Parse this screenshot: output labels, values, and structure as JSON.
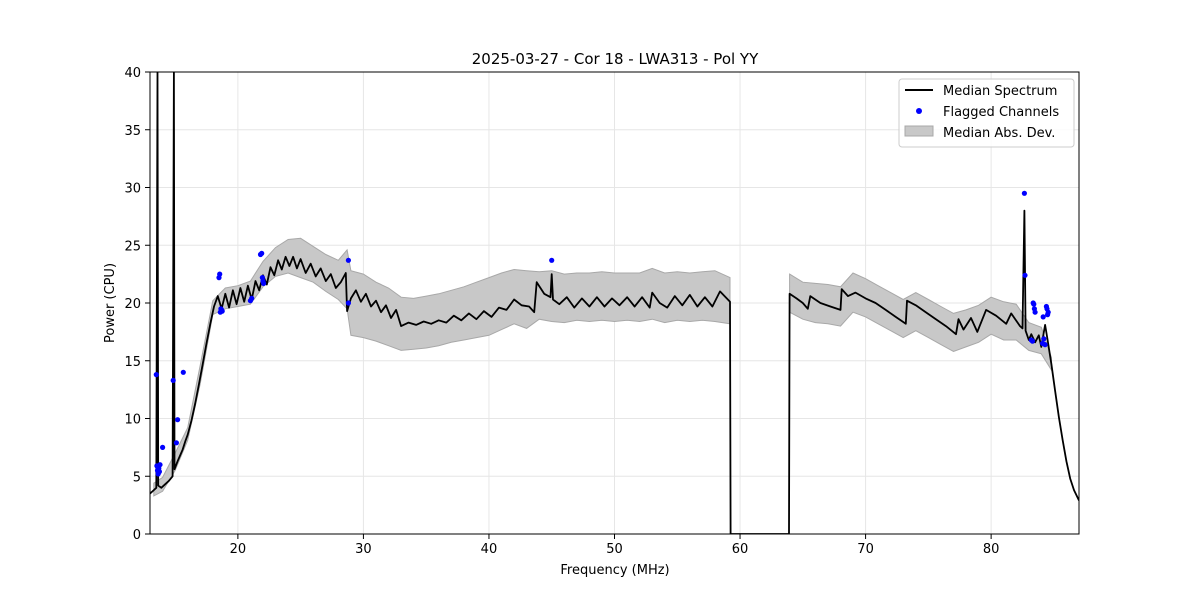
{
  "chart_data": {
    "type": "line",
    "title": "2025-03-27 - Cor 18 - LWA313 - Pol YY",
    "xlabel": "Frequency (MHz)",
    "ylabel": "Power (CPU)",
    "xlim": [
      13.0,
      87.0
    ],
    "ylim": [
      0,
      40
    ],
    "xticks": [
      20,
      30,
      40,
      50,
      60,
      70,
      80
    ],
    "yticks": [
      0,
      5,
      10,
      15,
      20,
      25,
      30,
      35,
      40
    ],
    "grid": true,
    "legend_position": "top-right",
    "legend": [
      "Median Spectrum",
      "Flagged Channels",
      "Median Abs. Dev."
    ],
    "colors": {
      "median": "#000000",
      "flagged": "#0000ff",
      "mad_fill": "#c8c8c8",
      "mad_edge": "#a8a8a8",
      "grid": "#e6e6e6"
    },
    "series": [
      {
        "name": "Median Spectrum",
        "points": [
          [
            13.0,
            3.5
          ],
          [
            13.3,
            3.8
          ],
          [
            13.5,
            4.0
          ],
          [
            13.6,
            40
          ],
          [
            13.65,
            4.2
          ],
          [
            13.9,
            4.0
          ],
          [
            14.2,
            4.3
          ],
          [
            14.5,
            4.6
          ],
          [
            14.8,
            5.0
          ],
          [
            14.9,
            40
          ],
          [
            14.95,
            5.6
          ],
          [
            15.2,
            6.3
          ],
          [
            15.4,
            6.8
          ],
          [
            15.6,
            7.3
          ],
          [
            15.8,
            8.0
          ],
          [
            16.0,
            8.6
          ],
          [
            16.3,
            9.8
          ],
          [
            16.6,
            11.3
          ],
          [
            16.9,
            13.0
          ],
          [
            17.2,
            14.7
          ],
          [
            17.5,
            16.5
          ],
          [
            17.8,
            18.2
          ],
          [
            18.1,
            19.7
          ],
          [
            18.4,
            20.6
          ],
          [
            18.7,
            19.5
          ],
          [
            19.0,
            20.8
          ],
          [
            19.3,
            19.6
          ],
          [
            19.6,
            21.1
          ],
          [
            19.9,
            19.9
          ],
          [
            20.2,
            21.3
          ],
          [
            20.5,
            20.1
          ],
          [
            20.8,
            21.5
          ],
          [
            21.1,
            20.3
          ],
          [
            21.4,
            21.9
          ],
          [
            21.7,
            21.1
          ],
          [
            22.0,
            22.4
          ],
          [
            22.3,
            21.6
          ],
          [
            22.6,
            23.1
          ],
          [
            22.9,
            22.4
          ],
          [
            23.2,
            23.7
          ],
          [
            23.5,
            22.9
          ],
          [
            23.8,
            24.0
          ],
          [
            24.1,
            23.2
          ],
          [
            24.4,
            24.0
          ],
          [
            24.7,
            23.0
          ],
          [
            25.0,
            23.8
          ],
          [
            25.4,
            22.6
          ],
          [
            25.8,
            23.4
          ],
          [
            26.2,
            22.3
          ],
          [
            26.6,
            23.0
          ],
          [
            27.0,
            21.9
          ],
          [
            27.4,
            22.5
          ],
          [
            27.8,
            21.3
          ],
          [
            28.2,
            21.8
          ],
          [
            28.6,
            22.6
          ],
          [
            28.7,
            19.3
          ],
          [
            29.0,
            20.4
          ],
          [
            29.4,
            21.1
          ],
          [
            29.8,
            20.1
          ],
          [
            30.2,
            20.8
          ],
          [
            30.6,
            19.7
          ],
          [
            31.0,
            20.2
          ],
          [
            31.4,
            19.2
          ],
          [
            31.8,
            19.8
          ],
          [
            32.2,
            18.7
          ],
          [
            32.6,
            19.4
          ],
          [
            33.0,
            18.0
          ],
          [
            33.6,
            18.3
          ],
          [
            34.2,
            18.1
          ],
          [
            34.8,
            18.4
          ],
          [
            35.4,
            18.2
          ],
          [
            36.0,
            18.5
          ],
          [
            36.6,
            18.3
          ],
          [
            37.2,
            18.9
          ],
          [
            37.8,
            18.5
          ],
          [
            38.4,
            19.1
          ],
          [
            39.0,
            18.6
          ],
          [
            39.6,
            19.3
          ],
          [
            40.2,
            18.8
          ],
          [
            40.8,
            19.6
          ],
          [
            41.4,
            19.4
          ],
          [
            42.0,
            20.3
          ],
          [
            42.6,
            19.8
          ],
          [
            43.2,
            19.7
          ],
          [
            43.6,
            19.2
          ],
          [
            43.8,
            21.8
          ],
          [
            44.4,
            20.8
          ],
          [
            44.9,
            20.5
          ],
          [
            45.0,
            22.5
          ],
          [
            45.1,
            20.3
          ],
          [
            45.6,
            19.9
          ],
          [
            46.2,
            20.5
          ],
          [
            46.8,
            19.6
          ],
          [
            47.4,
            20.4
          ],
          [
            48.0,
            19.7
          ],
          [
            48.6,
            20.5
          ],
          [
            49.2,
            19.7
          ],
          [
            49.8,
            20.4
          ],
          [
            50.4,
            19.8
          ],
          [
            51.0,
            20.5
          ],
          [
            51.6,
            19.7
          ],
          [
            52.2,
            20.5
          ],
          [
            52.8,
            19.6
          ],
          [
            53.0,
            20.9
          ],
          [
            53.6,
            20.0
          ],
          [
            54.2,
            19.6
          ],
          [
            54.8,
            20.6
          ],
          [
            55.4,
            19.8
          ],
          [
            56.0,
            20.7
          ],
          [
            56.6,
            19.7
          ],
          [
            57.2,
            20.5
          ],
          [
            57.8,
            19.7
          ],
          [
            58.4,
            21.0
          ],
          [
            59.2,
            20.1
          ],
          [
            59.25,
            0
          ],
          [
            63.9,
            0
          ],
          [
            63.95,
            20.8
          ],
          [
            64.5,
            20.4
          ],
          [
            65.0,
            20.0
          ],
          [
            65.4,
            19.5
          ],
          [
            65.6,
            20.6
          ],
          [
            66.4,
            20.0
          ],
          [
            67.2,
            19.7
          ],
          [
            68.0,
            19.4
          ],
          [
            68.1,
            21.2
          ],
          [
            68.6,
            20.6
          ],
          [
            69.2,
            20.9
          ],
          [
            70.0,
            20.4
          ],
          [
            70.8,
            20.0
          ],
          [
            71.6,
            19.4
          ],
          [
            72.4,
            18.8
          ],
          [
            73.2,
            18.2
          ],
          [
            73.3,
            20.2
          ],
          [
            74.0,
            19.8
          ],
          [
            74.8,
            19.2
          ],
          [
            75.6,
            18.6
          ],
          [
            76.4,
            18.0
          ],
          [
            77.2,
            17.3
          ],
          [
            77.4,
            18.6
          ],
          [
            77.8,
            17.7
          ],
          [
            78.4,
            18.7
          ],
          [
            78.9,
            17.5
          ],
          [
            79.6,
            19.4
          ],
          [
            80.4,
            18.9
          ],
          [
            81.2,
            18.2
          ],
          [
            81.6,
            19.1
          ],
          [
            82.3,
            18.0
          ],
          [
            82.5,
            17.8
          ],
          [
            82.65,
            28.0
          ],
          [
            82.75,
            17.6
          ],
          [
            83.0,
            16.8
          ],
          [
            83.2,
            17.3
          ],
          [
            83.5,
            16.6
          ],
          [
            83.8,
            17.2
          ],
          [
            84.0,
            16.2
          ],
          [
            84.3,
            18.1
          ],
          [
            84.5,
            16.8
          ],
          [
            84.8,
            14.7
          ],
          [
            85.1,
            12.4
          ],
          [
            85.4,
            10.1
          ],
          [
            85.7,
            8.1
          ],
          [
            86.0,
            6.3
          ],
          [
            86.3,
            4.8
          ],
          [
            86.6,
            3.8
          ],
          [
            87.0,
            2.9
          ]
        ]
      }
    ],
    "median_abs_dev": [
      [
        13.3,
        3.3,
        4.4
      ],
      [
        14.0,
        3.7,
        4.9
      ],
      [
        15.0,
        5.5,
        7.0
      ],
      [
        16.0,
        8.1,
        9.2
      ],
      [
        17.0,
        13.0,
        14.6
      ],
      [
        18.0,
        19.0,
        20.2
      ],
      [
        19.0,
        19.5,
        21.3
      ],
      [
        20.0,
        19.7,
        21.5
      ],
      [
        21.0,
        19.9,
        21.9
      ],
      [
        22.0,
        21.4,
        23.6
      ],
      [
        23.0,
        22.3,
        24.8
      ],
      [
        24.0,
        22.6,
        25.5
      ],
      [
        25.0,
        22.2,
        25.6
      ],
      [
        26.0,
        21.8,
        24.9
      ],
      [
        27.0,
        21.0,
        24.2
      ],
      [
        28.0,
        20.3,
        23.7
      ],
      [
        28.7,
        19.5,
        24.6
      ],
      [
        29.0,
        17.2,
        22.8
      ],
      [
        30.0,
        17.0,
        22.5
      ],
      [
        31.0,
        16.7,
        21.8
      ],
      [
        32.0,
        16.3,
        21.3
      ],
      [
        33.0,
        15.9,
        20.5
      ],
      [
        34.0,
        16.0,
        20.4
      ],
      [
        35.0,
        16.1,
        20.6
      ],
      [
        36.0,
        16.3,
        20.8
      ],
      [
        37.0,
        16.6,
        21.1
      ],
      [
        38.0,
        16.8,
        21.4
      ],
      [
        39.0,
        17.0,
        21.8
      ],
      [
        40.0,
        17.2,
        22.2
      ],
      [
        41.0,
        17.7,
        22.6
      ],
      [
        42.0,
        18.2,
        22.9
      ],
      [
        43.0,
        17.8,
        22.8
      ],
      [
        44.0,
        18.6,
        22.7
      ],
      [
        45.0,
        18.4,
        22.8
      ],
      [
        46.0,
        18.3,
        22.5
      ],
      [
        47.0,
        18.5,
        22.6
      ],
      [
        48.0,
        18.4,
        22.6
      ],
      [
        49.0,
        18.5,
        22.7
      ],
      [
        50.0,
        18.4,
        22.6
      ],
      [
        51.0,
        18.5,
        22.6
      ],
      [
        52.0,
        18.4,
        22.6
      ],
      [
        53.0,
        18.6,
        23.0
      ],
      [
        54.0,
        18.3,
        22.6
      ],
      [
        55.0,
        18.5,
        22.7
      ],
      [
        56.0,
        18.4,
        22.6
      ],
      [
        57.0,
        18.5,
        22.7
      ],
      [
        58.0,
        18.4,
        22.8
      ],
      [
        59.2,
        18.2,
        22.2
      ],
      [
        63.95,
        19.2,
        22.5
      ],
      [
        65.0,
        18.6,
        21.8
      ],
      [
        66.0,
        18.3,
        21.7
      ],
      [
        67.0,
        18.2,
        21.6
      ],
      [
        68.0,
        18.0,
        21.4
      ],
      [
        69.0,
        19.2,
        22.6
      ],
      [
        70.0,
        18.8,
        22.1
      ],
      [
        71.0,
        18.2,
        21.5
      ],
      [
        72.0,
        17.6,
        20.9
      ],
      [
        73.0,
        17.0,
        20.3
      ],
      [
        74.0,
        17.6,
        20.9
      ],
      [
        75.0,
        17.0,
        20.3
      ],
      [
        76.0,
        16.4,
        19.7
      ],
      [
        77.0,
        15.8,
        19.1
      ],
      [
        78.0,
        16.2,
        19.4
      ],
      [
        79.0,
        16.6,
        19.8
      ],
      [
        80.0,
        17.3,
        20.5
      ],
      [
        81.0,
        16.8,
        20.1
      ],
      [
        82.0,
        16.8,
        19.9
      ],
      [
        83.0,
        15.9,
        18.3
      ],
      [
        84.0,
        15.6,
        17.9
      ],
      [
        84.8,
        14.2,
        15.3
      ]
    ],
    "flagged_channels": [
      [
        13.5,
        13.8
      ],
      [
        13.55,
        5.9
      ],
      [
        13.6,
        5.5
      ],
      [
        13.65,
        5.2
      ],
      [
        13.7,
        5.7
      ],
      [
        13.75,
        5.4
      ],
      [
        13.8,
        6.0
      ],
      [
        14.0,
        7.5
      ],
      [
        14.85,
        13.3
      ],
      [
        15.1,
        7.9
      ],
      [
        15.2,
        9.9
      ],
      [
        15.65,
        14.0
      ],
      [
        18.5,
        22.2
      ],
      [
        18.55,
        22.5
      ],
      [
        18.6,
        19.2
      ],
      [
        18.65,
        19.5
      ],
      [
        18.7,
        19.4
      ],
      [
        18.75,
        19.3
      ],
      [
        21.0,
        20.2
      ],
      [
        21.1,
        20.4
      ],
      [
        21.8,
        24.2
      ],
      [
        21.9,
        24.3
      ],
      [
        21.95,
        22.2
      ],
      [
        22.0,
        21.9
      ],
      [
        22.05,
        21.7
      ],
      [
        28.8,
        23.7
      ],
      [
        28.8,
        20.0
      ],
      [
        45.0,
        23.7
      ],
      [
        82.65,
        29.5
      ],
      [
        82.7,
        22.4
      ],
      [
        83.2,
        16.8
      ],
      [
        83.3,
        16.7
      ],
      [
        83.35,
        20.0
      ],
      [
        83.4,
        19.9
      ],
      [
        83.45,
        19.5
      ],
      [
        83.5,
        19.2
      ],
      [
        84.1,
        16.5
      ],
      [
        84.15,
        18.8
      ],
      [
        84.2,
        16.9
      ],
      [
        84.3,
        16.4
      ],
      [
        84.4,
        19.7
      ],
      [
        84.45,
        19.5
      ],
      [
        84.5,
        19.0
      ],
      [
        84.55,
        19.2
      ]
    ]
  }
}
